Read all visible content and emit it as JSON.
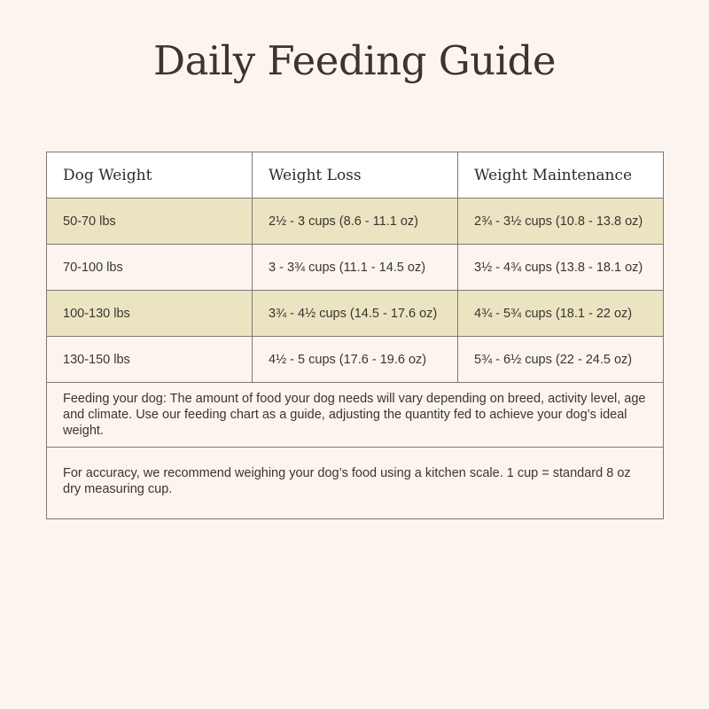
{
  "title": "Daily Feeding Guide",
  "table": {
    "headers": [
      "Dog Weight",
      "Weight Loss",
      "Weight Maintenance"
    ],
    "rows": [
      {
        "weight": "50-70 lbs",
        "loss": "2½ - 3 cups (8.6 - 11.1 oz)",
        "maintenance": "2¾ - 3½ cups (10.8 - 13.8 oz)",
        "shaded": true
      },
      {
        "weight": "70-100 lbs",
        "loss": "3 - 3¾ cups (11.1 - 14.5 oz)",
        "maintenance": "3½ - 4¾ cups (13.8 - 18.1 oz)",
        "shaded": false
      },
      {
        "weight": "100-130 lbs",
        "loss": "3¾ - 4½ cups (14.5 - 17.6 oz)",
        "maintenance": "4¾ - 5¾ cups (18.1 - 22 oz)",
        "shaded": true
      },
      {
        "weight": "130-150 lbs",
        "loss": "4½ - 5 cups (17.6 - 19.6 oz)",
        "maintenance": "5¾ - 6½ cups (22 - 24.5 oz)",
        "shaded": false
      }
    ],
    "notes": [
      "Feeding your dog: The amount of food your dog needs will vary depending on breed, activity level, age and climate. Use our feeding chart as a guide, adjusting the quantity fed to achieve your dog’s ideal weight.",
      "For accuracy, we recommend weighing your dog’s food using a kitchen scale. 1 cup = standard 8 oz dry measuring cup."
    ]
  },
  "colors": {
    "background": "#fcf5ef",
    "shaded_row": "#ebe4c2",
    "header_row": "#ffffff",
    "border": "#7d7874",
    "text": "#3a3431"
  }
}
